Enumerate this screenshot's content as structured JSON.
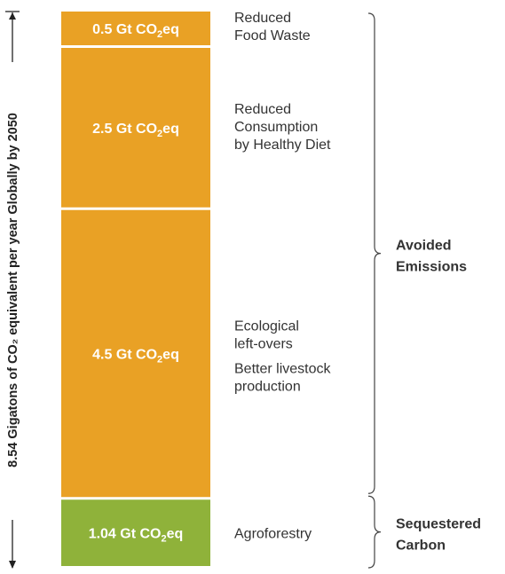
{
  "chart_data": {
    "type": "bar",
    "stacked": true,
    "unit": "Gt CO2eq",
    "total_label": "8.54 Gigatons of CO₂ equivalent per year Globally by 2050",
    "total": 8.54,
    "segments": [
      {
        "value": 0.5,
        "label_main": "0.5 Gt CO",
        "label_sub": "2",
        "label_end": "eq",
        "description": [
          "Reduced",
          "Food Waste"
        ],
        "color": "#E9A125"
      },
      {
        "value": 2.5,
        "label_main": "2.5 Gt CO",
        "label_sub": "2",
        "label_end": "eq",
        "description": [
          "Reduced",
          "Consumption",
          "by Healthy Diet"
        ],
        "color": "#E9A125"
      },
      {
        "value": 4.5,
        "label_main": "4.5 Gt CO",
        "label_sub": "2",
        "label_end": "eq",
        "description": [
          "Ecological",
          "left-overs",
          "Better livestock",
          "production"
        ],
        "color": "#E9A125"
      },
      {
        "value": 1.04,
        "label_main": "1.04 Gt CO",
        "label_sub": "2",
        "label_end": "eq",
        "description": [
          "Agroforestry"
        ],
        "color": "#8FB23A"
      }
    ],
    "groups": [
      {
        "name": [
          "Avoided",
          "Emissions"
        ],
        "segments": [
          0,
          1,
          2
        ]
      },
      {
        "name": [
          "Sequestered",
          "Carbon"
        ],
        "segments": [
          3
        ]
      }
    ]
  }
}
